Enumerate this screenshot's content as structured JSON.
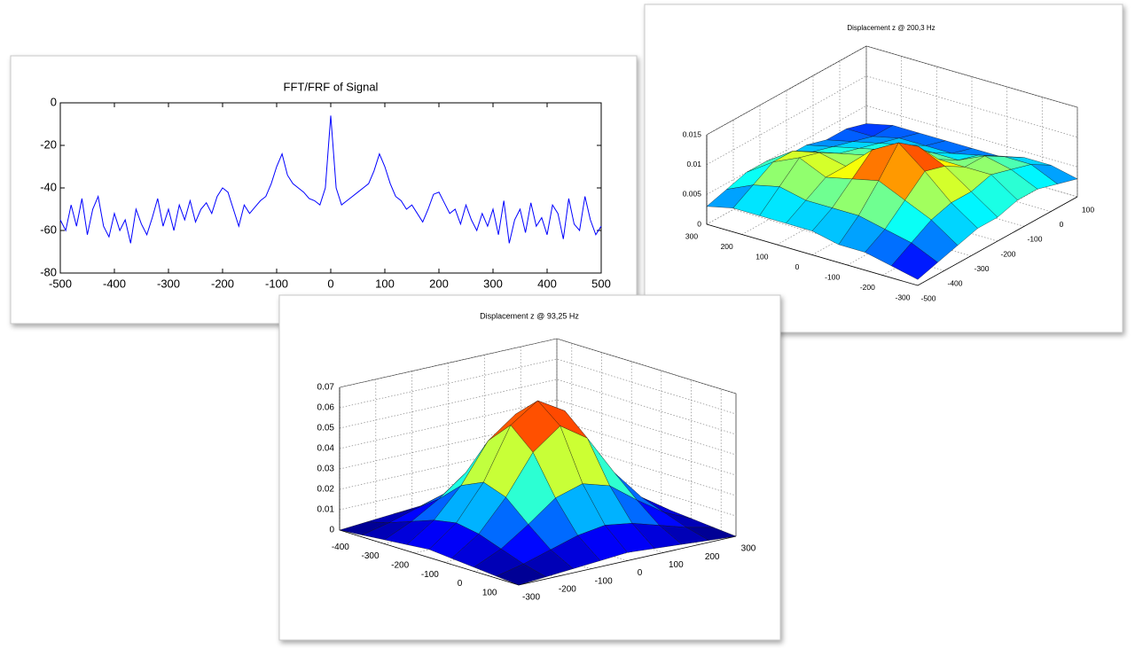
{
  "chart_data": [
    {
      "type": "line",
      "title": "FFT/FRF of Signal",
      "color": "#0000ff",
      "x": [
        -500,
        -490,
        -480,
        -470,
        -460,
        -450,
        -440,
        -430,
        -420,
        -410,
        -400,
        -390,
        -380,
        -370,
        -360,
        -350,
        -340,
        -330,
        -320,
        -310,
        -300,
        -290,
        -280,
        -270,
        -260,
        -250,
        -240,
        -230,
        -220,
        -210,
        -200,
        -190,
        -180,
        -170,
        -160,
        -150,
        -140,
        -130,
        -120,
        -110,
        -100,
        -90,
        -80,
        -70,
        -60,
        -50,
        -40,
        -30,
        -20,
        -10,
        0,
        10,
        20,
        30,
        40,
        50,
        60,
        70,
        80,
        90,
        100,
        110,
        120,
        130,
        140,
        150,
        160,
        170,
        180,
        190,
        200,
        210,
        220,
        230,
        240,
        250,
        260,
        270,
        280,
        290,
        300,
        310,
        320,
        330,
        340,
        350,
        360,
        370,
        380,
        390,
        400,
        410,
        420,
        430,
        440,
        450,
        460,
        470,
        480,
        490,
        500
      ],
      "values": [
        -55,
        -60,
        -48,
        -58,
        -45,
        -62,
        -50,
        -44,
        -58,
        -63,
        -52,
        -60,
        -55,
        -66,
        -50,
        -57,
        -62,
        -54,
        -45,
        -58,
        -50,
        -60,
        -48,
        -55,
        -46,
        -56,
        -50,
        -47,
        -52,
        -44,
        -40,
        -42,
        -50,
        -58,
        -48,
        -52,
        -49,
        -46,
        -44,
        -38,
        -30,
        -24,
        -34,
        -38,
        -40,
        -42,
        -45,
        -46,
        -48,
        -40,
        -6,
        -40,
        -48,
        -46,
        -44,
        -42,
        -40,
        -38,
        -32,
        -24,
        -30,
        -38,
        -44,
        -46,
        -50,
        -48,
        -52,
        -56,
        -50,
        -43,
        -42,
        -47,
        -52,
        -50,
        -57,
        -48,
        -55,
        -60,
        -52,
        -58,
        -50,
        -62,
        -46,
        -66,
        -55,
        -50,
        -61,
        -47,
        -58,
        -54,
        -62,
        -48,
        -52,
        -64,
        -45,
        -57,
        -60,
        -44,
        -55,
        -62,
        -58
      ],
      "xlim": [
        -500,
        500
      ],
      "xticks": [
        -500,
        -400,
        -300,
        -200,
        -100,
        0,
        100,
        200,
        300,
        400,
        500
      ],
      "ylim": [
        -80,
        0
      ],
      "yticks": [
        -80,
        -60,
        -40,
        -20,
        0
      ]
    },
    {
      "type": "surface",
      "title": "Displacement z @ 200,3 Hz",
      "x": [
        300,
        225,
        150,
        75,
        0,
        -75,
        -150,
        -225,
        -300
      ],
      "y": [
        -500,
        -425,
        -350,
        -275,
        -200,
        -125,
        -50,
        25,
        100
      ],
      "z": [
        [
          0.003,
          0.004,
          0.005,
          0.005,
          0.004,
          0.004,
          0.003,
          0.003,
          0.002
        ],
        [
          0.004,
          0.006,
          0.008,
          0.008,
          0.006,
          0.005,
          0.004,
          0.003,
          0.003
        ],
        [
          0.004,
          0.007,
          0.01,
          0.009,
          0.007,
          0.006,
          0.005,
          0.004,
          0.003
        ],
        [
          0.004,
          0.006,
          0.008,
          0.008,
          0.008,
          0.007,
          0.006,
          0.004,
          0.003
        ],
        [
          0.004,
          0.006,
          0.009,
          0.012,
          0.011,
          0.008,
          0.006,
          0.004,
          0.003
        ],
        [
          0.003,
          0.006,
          0.01,
          0.0145,
          0.012,
          0.008,
          0.006,
          0.005,
          0.003
        ],
        [
          0.003,
          0.005,
          0.008,
          0.011,
          0.01,
          0.008,
          0.008,
          0.006,
          0.004
        ],
        [
          0.002,
          0.004,
          0.006,
          0.007,
          0.007,
          0.008,
          0.007,
          0.006,
          0.004
        ],
        [
          0.001,
          0.002,
          0.003,
          0.004,
          0.004,
          0.005,
          0.005,
          0.004,
          0.003
        ]
      ],
      "xlim": [
        300,
        -300
      ],
      "xticks": [
        300,
        200,
        100,
        0,
        -100,
        -200,
        -300
      ],
      "ylim": [
        -500,
        100
      ],
      "yticks": [
        -500,
        -400,
        -300,
        -200,
        -100,
        0,
        100
      ],
      "zlim": [
        0,
        0.015
      ],
      "zticks": [
        0,
        0.005,
        0.01,
        0.015
      ]
    },
    {
      "type": "surface",
      "title": "Displacement z @ 93,25 Hz",
      "x": [
        -450,
        -375,
        -300,
        -225,
        -150,
        -75,
        0,
        75,
        150
      ],
      "y": [
        -300,
        -225,
        -150,
        -75,
        0,
        75,
        150,
        225,
        300
      ],
      "z": [
        [
          0,
          0.001,
          0.002,
          0.003,
          0.004,
          0.003,
          0.002,
          0.001,
          0
        ],
        [
          0.001,
          0.004,
          0.008,
          0.012,
          0.014,
          0.012,
          0.008,
          0.004,
          0.001
        ],
        [
          0.002,
          0.008,
          0.016,
          0.026,
          0.03,
          0.026,
          0.016,
          0.008,
          0.002
        ],
        [
          0.003,
          0.012,
          0.026,
          0.045,
          0.055,
          0.046,
          0.027,
          0.012,
          0.003
        ],
        [
          0.004,
          0.014,
          0.031,
          0.056,
          0.065,
          0.057,
          0.032,
          0.014,
          0.004
        ],
        [
          0.003,
          0.012,
          0.027,
          0.046,
          0.056,
          0.047,
          0.027,
          0.012,
          0.003
        ],
        [
          0.002,
          0.008,
          0.017,
          0.027,
          0.031,
          0.027,
          0.017,
          0.008,
          0.002
        ],
        [
          0.001,
          0.004,
          0.008,
          0.012,
          0.014,
          0.012,
          0.008,
          0.004,
          0.001
        ],
        [
          0,
          0.001,
          0.002,
          0.003,
          0.004,
          0.003,
          0.002,
          0.001,
          0
        ]
      ],
      "xlim": [
        -450,
        150
      ],
      "xticks": [
        -400,
        -300,
        -200,
        -100,
        0,
        100
      ],
      "ylim": [
        -300,
        300
      ],
      "yticks": [
        -300,
        -200,
        -100,
        0,
        100,
        200,
        300
      ],
      "zlim": [
        0,
        0.07
      ],
      "zticks": [
        0,
        0.01,
        0.02,
        0.03,
        0.04,
        0.05,
        0.06,
        0.07
      ]
    }
  ]
}
